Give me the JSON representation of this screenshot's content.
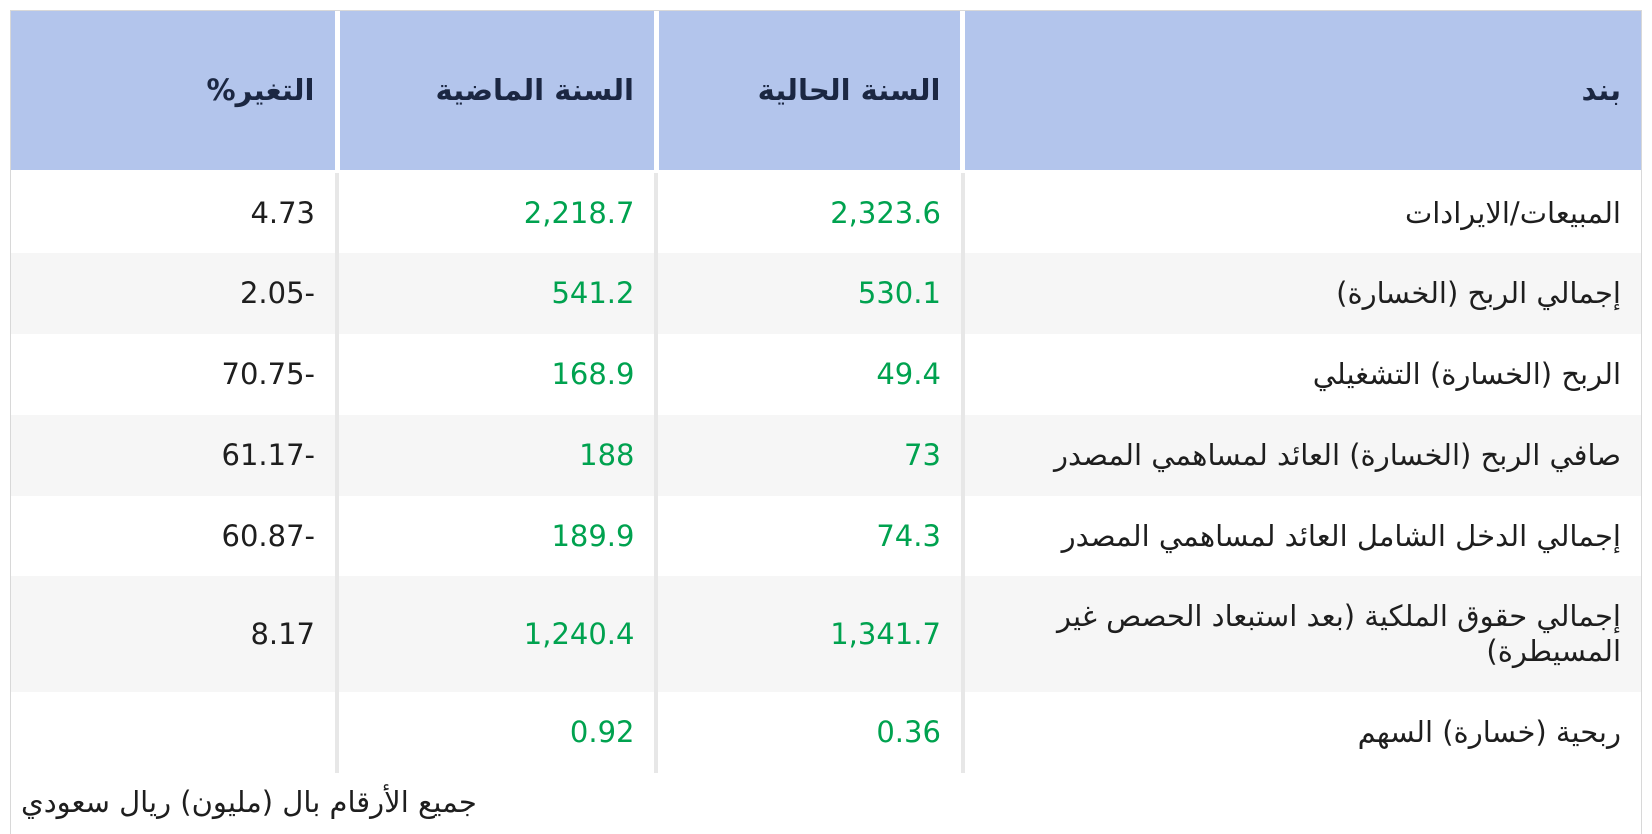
{
  "chart_data": {
    "type": "table",
    "columns": [
      {
        "key": "item",
        "label": "بند"
      },
      {
        "key": "current",
        "label": "السنة الحالية"
      },
      {
        "key": "previous",
        "label": "السنة الماضية"
      },
      {
        "key": "change",
        "label": "التغير%"
      }
    ],
    "rows": [
      {
        "item": "المبيعات/الايرادات",
        "current": "2,323.6",
        "previous": "2,218.7",
        "change": "4.73"
      },
      {
        "item": "إجمالي الربح (الخسارة)",
        "current": "530.1",
        "previous": "541.2",
        "change": "-2.05"
      },
      {
        "item": "الربح (الخسارة) التشغيلي",
        "current": "49.4",
        "previous": "168.9",
        "change": "-70.75"
      },
      {
        "item": "صافي الربح (الخسارة) العائد لمساهمي المصدر",
        "current": "73",
        "previous": "188",
        "change": "-61.17"
      },
      {
        "item": "إجمالي الدخل الشامل العائد لمساهمي المصدر",
        "current": "74.3",
        "previous": "189.9",
        "change": "-60.87"
      },
      {
        "item": "إجمالي حقوق الملكية (بعد استبعاد الحصص غير المسيطرة)",
        "current": "1,341.7",
        "previous": "1,240.4",
        "change": "8.17"
      },
      {
        "item": "ربحية (خسارة) السهم",
        "current": "0.36",
        "previous": "0.92",
        "change": ""
      }
    ],
    "footnote": "جميع الأرقام بال (مليون) ريال سعودي"
  },
  "colors": {
    "header_bg": "#b3c5ec",
    "header_text": "#1b2742",
    "value_green": "#00a24f",
    "body_text": "#1e1e1e",
    "row_alt_bg": "#f6f6f6",
    "column_border": "#e7e7e7",
    "outer_border": "#d8d8d8"
  }
}
